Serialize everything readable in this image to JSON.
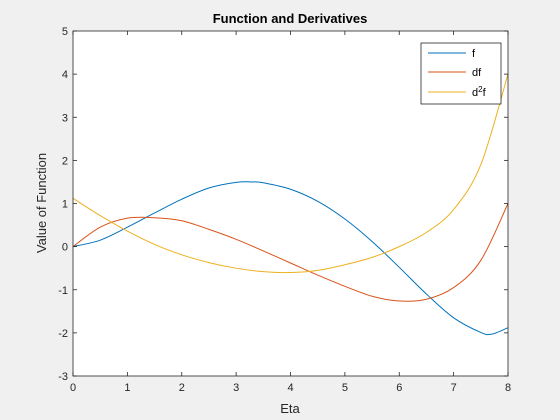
{
  "chart_data": {
    "type": "line",
    "title": "Function and Derivatives",
    "xlabel": "Eta",
    "ylabel": "Value of Function",
    "xlim": [
      0,
      8
    ],
    "ylim": [
      -3,
      5
    ],
    "xticks": [
      0,
      1,
      2,
      3,
      4,
      5,
      6,
      7,
      8
    ],
    "yticks": [
      -3,
      -2,
      -1,
      0,
      1,
      2,
      3,
      4,
      5
    ],
    "grid": false,
    "legend_position": "top-right",
    "series": [
      {
        "name": "f",
        "color": "#0072BD",
        "x": [
          0,
          0.5,
          1,
          1.5,
          2,
          2.5,
          3,
          3.3,
          3.5,
          4,
          4.5,
          5,
          5.5,
          6,
          6.5,
          7,
          7.5,
          7.7,
          8
        ],
        "y": [
          0,
          0.15,
          0.45,
          0.78,
          1.1,
          1.36,
          1.49,
          1.5,
          1.48,
          1.33,
          1.05,
          0.64,
          0.12,
          -0.48,
          -1.1,
          -1.65,
          -1.99,
          -2.03,
          -1.88
        ]
      },
      {
        "name": "df",
        "color": "#D95319",
        "x": [
          0,
          0.5,
          1,
          1.5,
          2,
          2.5,
          3,
          3.5,
          4,
          4.5,
          5,
          5.5,
          6,
          6.5,
          7,
          7.5,
          8
        ],
        "y": [
          0,
          0.45,
          0.66,
          0.67,
          0.6,
          0.4,
          0.17,
          -0.1,
          -0.38,
          -0.66,
          -0.92,
          -1.15,
          -1.26,
          -1.22,
          -0.95,
          -0.32,
          1.0
        ]
      },
      {
        "name": "d^2f",
        "color": "#EDB120",
        "x": [
          0,
          0.5,
          1,
          1.5,
          2,
          2.5,
          3,
          3.5,
          4,
          4.5,
          5,
          5.5,
          6,
          6.5,
          7,
          7.5,
          8
        ],
        "y": [
          1.12,
          0.72,
          0.36,
          0.05,
          -0.19,
          -0.37,
          -0.5,
          -0.58,
          -0.6,
          -0.55,
          -0.42,
          -0.25,
          0.0,
          0.33,
          0.86,
          1.9,
          4.0
        ]
      }
    ]
  }
}
